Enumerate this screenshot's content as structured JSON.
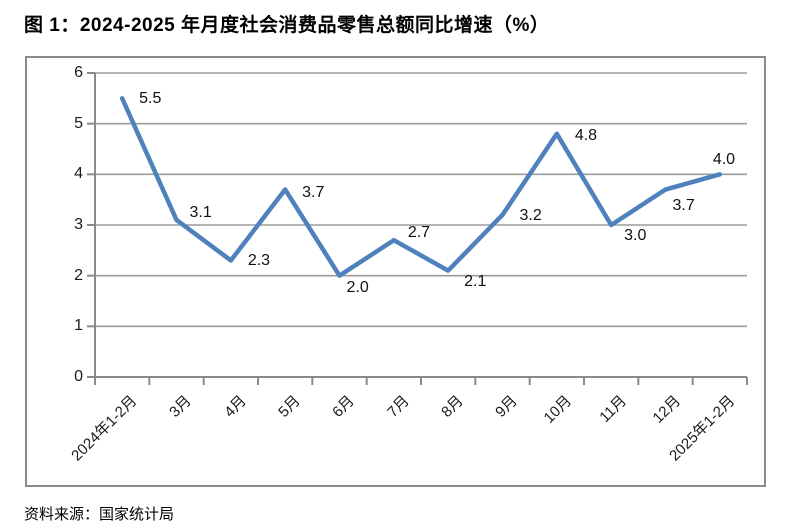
{
  "title": "图 1：2024-2025 年月度社会消费品零售总额同比增速（%）",
  "source": "资料来源：国家统计局",
  "chart_data": {
    "type": "line",
    "title": "图 1：2024-2025 年月度社会消费品零售总额同比增速（%）",
    "categories": [
      "2024年1-2月",
      "3月",
      "4月",
      "5月",
      "6月",
      "7月",
      "8月",
      "9月",
      "10月",
      "11月",
      "12月",
      "2025年1-2月"
    ],
    "values": [
      5.5,
      3.1,
      2.3,
      3.7,
      2.0,
      2.7,
      2.1,
      3.2,
      4.8,
      3.0,
      3.7,
      4.0
    ],
    "data_labels": [
      "5.5",
      "3.1",
      "2.3",
      "3.7",
      "2.0",
      "2.7",
      "2.1",
      "3.2",
      "4.8",
      "3.0",
      "3.7",
      "4.0"
    ],
    "xlabel": "",
    "ylabel": "",
    "ylim": [
      0,
      6
    ],
    "yticks": [
      0,
      1,
      2,
      3,
      4,
      5,
      6
    ],
    "grid": true,
    "legend": "none",
    "line_color": "#4F81BD",
    "grid_color": "#9b9b9b",
    "axis_color": "#8a8a8a",
    "frame_color": "#8a8a8a",
    "label_color": "#111111"
  }
}
